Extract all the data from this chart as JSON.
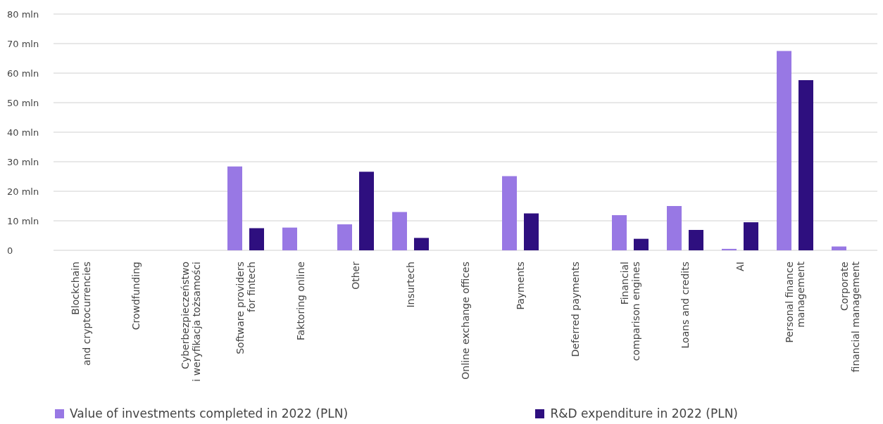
{
  "chart_data": {
    "type": "bar",
    "categories": [
      "Blockchain\nand cryptocurrencies",
      "Crowdfunding",
      "Cyberbezpieczeństwo\ni weryfikacja tożsamości",
      "Software providers\nfor fintech",
      "Faktoring online",
      "Other",
      "Insurtech",
      "Online exchange offices",
      "Payments",
      "Deferred payments",
      "Financial\ncomparison engines",
      "Loans and credits",
      "AI",
      "Personal finance\nmanagement",
      "Corporate\nfinancial management"
    ],
    "series": [
      {
        "name": "Value of investments completed in 2022 (PLN)",
        "color": "#9878e4",
        "values": [
          0,
          0,
          0,
          28.4,
          7.7,
          8.8,
          13.0,
          0,
          25.1,
          0,
          11.9,
          15.0,
          0.5,
          67.5,
          1.3
        ]
      },
      {
        "name": "R&D expenditure in 2022 (PLN)",
        "color": "#2e0f7f",
        "values": [
          0,
          0,
          0,
          7.5,
          0,
          26.6,
          4.2,
          0,
          12.5,
          0,
          3.9,
          6.9,
          9.5,
          57.6,
          0
        ]
      }
    ],
    "ylim": [
      0,
      80
    ],
    "yticks": [
      0,
      {
        "value": 10,
        "label": "10 mln"
      },
      {
        "value": 20,
        "label": "20 mln"
      },
      {
        "value": 30,
        "label": "30 mln"
      },
      {
        "value": 40,
        "label": "40 mln"
      },
      {
        "value": 50,
        "label": "50 mln"
      },
      {
        "value": 60,
        "label": "60 mln"
      },
      {
        "value": 70,
        "label": "70 mln"
      },
      {
        "value": 80,
        "label": "80 mln"
      }
    ],
    "grid": "y",
    "legend": "bottom"
  }
}
